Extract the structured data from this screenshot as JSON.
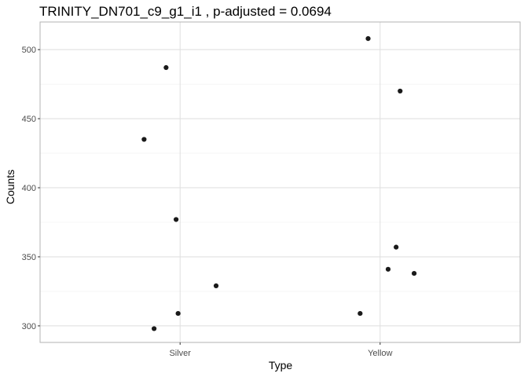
{
  "chart_data": {
    "type": "scatter",
    "title": "TRINITY_DN701_c9_g1_i1 , p-adjusted = 0.0694",
    "xlabel": "Type",
    "ylabel": "Counts",
    "categories": [
      "Silver",
      "Yellow"
    ],
    "ylim": [
      288,
      520
    ],
    "yticks": [
      300,
      350,
      400,
      450,
      500
    ],
    "grid": true,
    "legend": "none",
    "point_color": "#1a1a1a",
    "points": [
      {
        "x": "Silver",
        "jitter": -0.07,
        "y": 487
      },
      {
        "x": "Silver",
        "jitter": -0.18,
        "y": 435
      },
      {
        "x": "Silver",
        "jitter": -0.02,
        "y": 377
      },
      {
        "x": "Silver",
        "jitter": 0.18,
        "y": 329
      },
      {
        "x": "Silver",
        "jitter": -0.01,
        "y": 309
      },
      {
        "x": "Silver",
        "jitter": -0.13,
        "y": 298
      },
      {
        "x": "Yellow",
        "jitter": -0.06,
        "y": 508
      },
      {
        "x": "Yellow",
        "jitter": 0.1,
        "y": 470
      },
      {
        "x": "Yellow",
        "jitter": 0.08,
        "y": 357
      },
      {
        "x": "Yellow",
        "jitter": 0.04,
        "y": 341
      },
      {
        "x": "Yellow",
        "jitter": 0.17,
        "y": 338
      },
      {
        "x": "Yellow",
        "jitter": -0.1,
        "y": 309
      }
    ]
  }
}
